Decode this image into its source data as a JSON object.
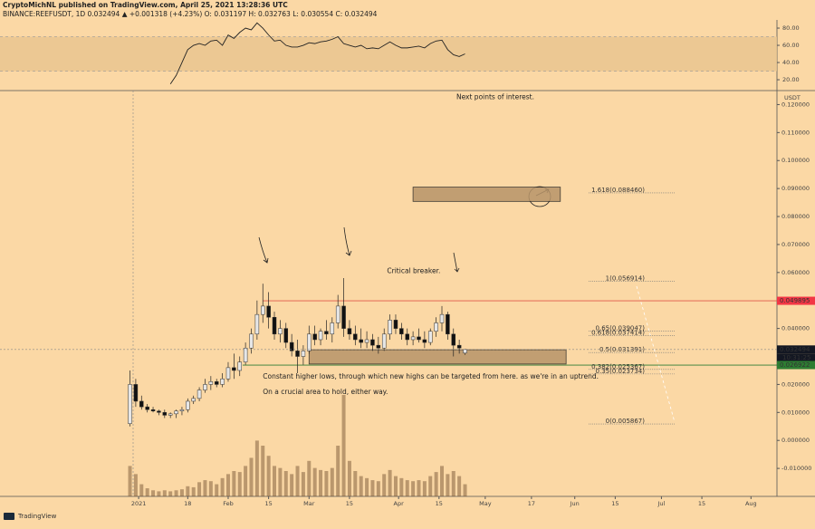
{
  "header": {
    "line1": "CryptoMichNL published on TradingView.com, April 25, 2021 13:28:36 UTC",
    "line2": "BINANCE:REEFUSDT, 1D 0.032494 ▲ +0.001318 (+4.23%) O: 0.031197 H: 0.032763 L: 0.030554 C: 0.032494",
    "footer": "TradingView"
  },
  "chart_data": {
    "type": "candlestick",
    "unit": "USDT",
    "x": [
      -3,
      -1,
      1,
      3,
      5,
      7,
      9,
      11,
      13,
      15,
      17,
      19,
      21,
      23,
      25,
      27,
      29,
      31,
      33,
      35,
      37,
      39,
      41,
      43,
      45,
      47,
      49,
      51,
      53,
      55,
      57,
      59,
      61,
      63,
      65,
      67,
      69,
      71,
      73,
      75,
      77,
      79,
      81,
      83,
      85,
      87,
      89,
      91,
      93,
      95,
      97,
      99,
      101,
      103,
      105,
      107,
      109,
      111,
      113
    ],
    "ohlc": [
      [
        0.006,
        0.025,
        0.005,
        0.02
      ],
      [
        0.02,
        0.022,
        0.012,
        0.014
      ],
      [
        0.014,
        0.016,
        0.011,
        0.012
      ],
      [
        0.012,
        0.013,
        0.01,
        0.011
      ],
      [
        0.011,
        0.012,
        0.01,
        0.0105
      ],
      [
        0.0105,
        0.011,
        0.009,
        0.01
      ],
      [
        0.01,
        0.011,
        0.008,
        0.009
      ],
      [
        0.009,
        0.01,
        0.008,
        0.0095
      ],
      [
        0.0095,
        0.011,
        0.008,
        0.0105
      ],
      [
        0.0105,
        0.012,
        0.009,
        0.011
      ],
      [
        0.011,
        0.015,
        0.01,
        0.014
      ],
      [
        0.014,
        0.016,
        0.013,
        0.015
      ],
      [
        0.015,
        0.019,
        0.014,
        0.018
      ],
      [
        0.018,
        0.022,
        0.017,
        0.02
      ],
      [
        0.02,
        0.023,
        0.018,
        0.021
      ],
      [
        0.021,
        0.022,
        0.019,
        0.02
      ],
      [
        0.02,
        0.024,
        0.019,
        0.022
      ],
      [
        0.022,
        0.028,
        0.021,
        0.026
      ],
      [
        0.026,
        0.031,
        0.022,
        0.025
      ],
      [
        0.025,
        0.03,
        0.023,
        0.028
      ],
      [
        0.028,
        0.035,
        0.027,
        0.033
      ],
      [
        0.033,
        0.04,
        0.031,
        0.038
      ],
      [
        0.038,
        0.05,
        0.036,
        0.045
      ],
      [
        0.045,
        0.056,
        0.042,
        0.048
      ],
      [
        0.048,
        0.053,
        0.04,
        0.044
      ],
      [
        0.044,
        0.046,
        0.036,
        0.038
      ],
      [
        0.038,
        0.043,
        0.035,
        0.04
      ],
      [
        0.04,
        0.042,
        0.033,
        0.035
      ],
      [
        0.035,
        0.038,
        0.03,
        0.032
      ],
      [
        0.032,
        0.036,
        0.024,
        0.03
      ],
      [
        0.03,
        0.034,
        0.027,
        0.032
      ],
      [
        0.032,
        0.041,
        0.031,
        0.038
      ],
      [
        0.038,
        0.041,
        0.034,
        0.036
      ],
      [
        0.036,
        0.04,
        0.034,
        0.039
      ],
      [
        0.039,
        0.043,
        0.036,
        0.038
      ],
      [
        0.038,
        0.044,
        0.035,
        0.042
      ],
      [
        0.042,
        0.052,
        0.04,
        0.048
      ],
      [
        0.048,
        0.058,
        0.037,
        0.04
      ],
      [
        0.04,
        0.043,
        0.036,
        0.038
      ],
      [
        0.038,
        0.041,
        0.034,
        0.036
      ],
      [
        0.036,
        0.04,
        0.033,
        0.035
      ],
      [
        0.035,
        0.039,
        0.033,
        0.036
      ],
      [
        0.036,
        0.038,
        0.032,
        0.034
      ],
      [
        0.034,
        0.037,
        0.031,
        0.033
      ],
      [
        0.033,
        0.04,
        0.032,
        0.038
      ],
      [
        0.038,
        0.045,
        0.036,
        0.043
      ],
      [
        0.043,
        0.045,
        0.038,
        0.04
      ],
      [
        0.04,
        0.042,
        0.036,
        0.038
      ],
      [
        0.038,
        0.04,
        0.034,
        0.036
      ],
      [
        0.036,
        0.039,
        0.034,
        0.037
      ],
      [
        0.037,
        0.04,
        0.035,
        0.036
      ],
      [
        0.036,
        0.039,
        0.033,
        0.035
      ],
      [
        0.035,
        0.04,
        0.034,
        0.039
      ],
      [
        0.039,
        0.044,
        0.037,
        0.042
      ],
      [
        0.042,
        0.048,
        0.039,
        0.045
      ],
      [
        0.045,
        0.046,
        0.036,
        0.038
      ],
      [
        0.038,
        0.04,
        0.03,
        0.034
      ],
      [
        0.034,
        0.036,
        0.031,
        0.033
      ],
      [
        0.031197,
        0.032763,
        0.030554,
        0.032494
      ]
    ],
    "volume": [
      30,
      22,
      12,
      8,
      6,
      5,
      6,
      5,
      6,
      7,
      10,
      9,
      14,
      16,
      15,
      12,
      18,
      22,
      25,
      24,
      30,
      38,
      55,
      50,
      40,
      30,
      28,
      25,
      22,
      30,
      24,
      35,
      28,
      26,
      25,
      28,
      50,
      100,
      35,
      25,
      20,
      18,
      16,
      15,
      22,
      26,
      20,
      18,
      16,
      15,
      16,
      15,
      20,
      24,
      30,
      22,
      25,
      20,
      12
    ],
    "xlim": [
      -48,
      221
    ],
    "ylim": [
      -0.02,
      0.125
    ],
    "yticks": [
      {
        "value": 0.12,
        "label": "0.120000"
      },
      {
        "value": 0.11,
        "label": "0.110000"
      },
      {
        "value": 0.1,
        "label": "0.100000"
      },
      {
        "value": 0.09,
        "label": "0.090000"
      },
      {
        "value": 0.08,
        "label": "0.080000"
      },
      {
        "value": 0.07,
        "label": "0.070000"
      },
      {
        "value": 0.06,
        "label": "0.060000"
      },
      {
        "value": 0.04,
        "label": "0.040000"
      },
      {
        "value": 0.02,
        "label": "0.020000"
      },
      {
        "value": 0.01,
        "label": "0.010000"
      },
      {
        "value": 0,
        "label": "0.000000"
      },
      {
        "value": -0.01,
        "label": "-0.010000"
      }
    ],
    "xticks": [
      {
        "value": 0,
        "label": "2021"
      },
      {
        "value": 17,
        "label": "18"
      },
      {
        "value": 31,
        "label": "Feb"
      },
      {
        "value": 45,
        "label": "15"
      },
      {
        "value": 59,
        "label": "Mar"
      },
      {
        "value": 73,
        "label": "15"
      },
      {
        "value": 90,
        "label": "Apr"
      },
      {
        "value": 104,
        "label": "15"
      },
      {
        "value": 120,
        "label": "May"
      },
      {
        "value": 136,
        "label": "17"
      },
      {
        "value": 151,
        "label": "Jun"
      },
      {
        "value": 165,
        "label": "15"
      },
      {
        "value": 181,
        "label": "Jul"
      },
      {
        "value": 195,
        "label": "15"
      },
      {
        "value": 212,
        "label": "Aug"
      }
    ],
    "price_labels": [
      {
        "value": 0.049895,
        "color": "#f23645"
      },
      {
        "value": 0.032494,
        "color": "#131722"
      },
      {
        "value": 0.031733,
        "color": "#1b3a1b"
      },
      {
        "value": 0.026922,
        "color": "#2e7d32"
      }
    ],
    "countdown": "10:31:25",
    "levels": [
      {
        "value": 0.049895,
        "color": "#e0584a",
        "from": 43
      },
      {
        "value": 0.026922,
        "color": "#2e7d32",
        "from": 36
      }
    ],
    "zones": [
      {
        "x": [
          95,
          146
        ],
        "y": [
          0.0854,
          0.0905
        ]
      },
      {
        "x": [
          59,
          148
        ],
        "y": [
          0.0273,
          0.0324
        ]
      }
    ],
    "fib_levels": [
      {
        "value": 0.08846,
        "label": "1.618(0.088460)"
      },
      {
        "value": 0.056914,
        "label": "1(0.056914)"
      },
      {
        "value": 0.039047,
        "label": "0.65(0.039047)"
      },
      {
        "value": 0.037414,
        "label": "0.618(0.037414)"
      },
      {
        "value": 0.031391,
        "label": "0.5(0.031391)"
      },
      {
        "value": 0.025367,
        "label": "0.382(0.025367)"
      },
      {
        "value": 0.023734,
        "label": "0.35(0.023734)"
      },
      {
        "value": 0.005867,
        "label": "0(0.005867)"
      }
    ],
    "annotations": [
      {
        "text": "Next points of interest.",
        "x": 110,
        "y": 0.1225
      },
      {
        "text": "Critical breaker.",
        "x": 86,
        "y": 0.0605
      },
      {
        "text": "Constant higher lows, through which new highs can be targeted from here. as we're in an uptrend.",
        "x": 43,
        "y": 0.0228
      },
      {
        "text": "On a crucial area to hold, either way.",
        "x": 43,
        "y": 0.0173
      }
    ],
    "rsi": {
      "x": [
        11,
        13,
        15,
        17,
        19,
        21,
        23,
        25,
        27,
        29,
        31,
        33,
        35,
        37,
        39,
        41,
        43,
        45,
        47,
        49,
        51,
        53,
        55,
        57,
        59,
        61,
        63,
        65,
        67,
        69,
        71,
        73,
        75,
        77,
        79,
        81,
        83,
        85,
        87,
        89,
        91,
        93,
        95,
        97,
        99,
        101,
        103,
        105,
        107,
        109,
        111,
        113
      ],
      "values": [
        15,
        25,
        40,
        55,
        60,
        62,
        60,
        65,
        66,
        60,
        72,
        68,
        75,
        80,
        78,
        86,
        80,
        72,
        65,
        66,
        60,
        58,
        58,
        60,
        63,
        62,
        64,
        65,
        67,
        70,
        62,
        60,
        58,
        60,
        56,
        57,
        56,
        60,
        64,
        60,
        57,
        57,
        58,
        59,
        57,
        62,
        65,
        66,
        55,
        49,
        47,
        50
      ],
      "ylim": [
        9.5,
        89.5
      ],
      "band": [
        30,
        70
      ],
      "yticks": [
        {
          "value": 80,
          "label": "80.00"
        },
        {
          "value": 60,
          "label": "60.00"
        },
        {
          "value": 40,
          "label": "40.00"
        },
        {
          "value": 20,
          "label": "20.00"
        }
      ]
    }
  }
}
